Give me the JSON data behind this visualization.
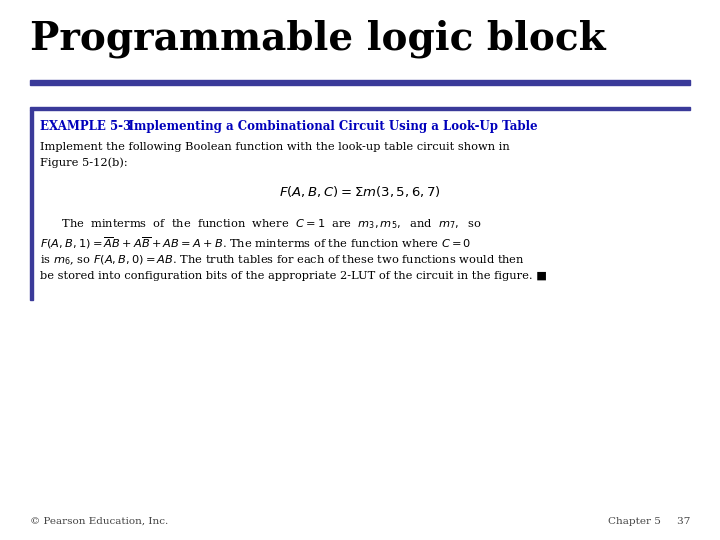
{
  "title": "Programmable logic block",
  "title_color": "#000000",
  "title_fontsize": 28,
  "title_font": "serif",
  "rule_color": "#3a3a99",
  "background_color": "#ffffff",
  "example_label": "EXAMPLE 5-3",
  "example_subtitle": "    Implementing a Combinational Circuit Using a Look-Up Table",
  "example_color": "#0000bb",
  "example_fontsize": 8.5,
  "sidebar_color": "#3a3a99",
  "body_text_1": "Implement the following Boolean function with the look-up table circuit shown in\nFigure 5-12(b):",
  "body_fontsize": 8.2,
  "body_color": "#000000",
  "formula": "$F(A, B, C) = \\Sigma m(3,5,6,7)$",
  "formula_fontsize": 9.5,
  "body_text_2_line1": "      The  minterms  of  the  function  where  $C = 1$  are  $m_3, m_5,$  and  $m_7,$  so",
  "body_text_2_line2": "$F(A, B, 1) = \\overline{A}B + A\\overline{B} + AB = A + B$. The minterms of the function where $C = 0$",
  "body_text_2_line3": "is $m_6$, so $F(A, B, 0) = AB$. The truth tables for each of these two functions would then",
  "body_text_2_line4": "be stored into configuration bits of the appropriate 2-LUT of the circuit in the figure. ■",
  "footer_left": "© Pearson Education, Inc.",
  "footer_right": "Chapter 5     37",
  "footer_color": "#444444",
  "footer_fontsize": 7.5
}
